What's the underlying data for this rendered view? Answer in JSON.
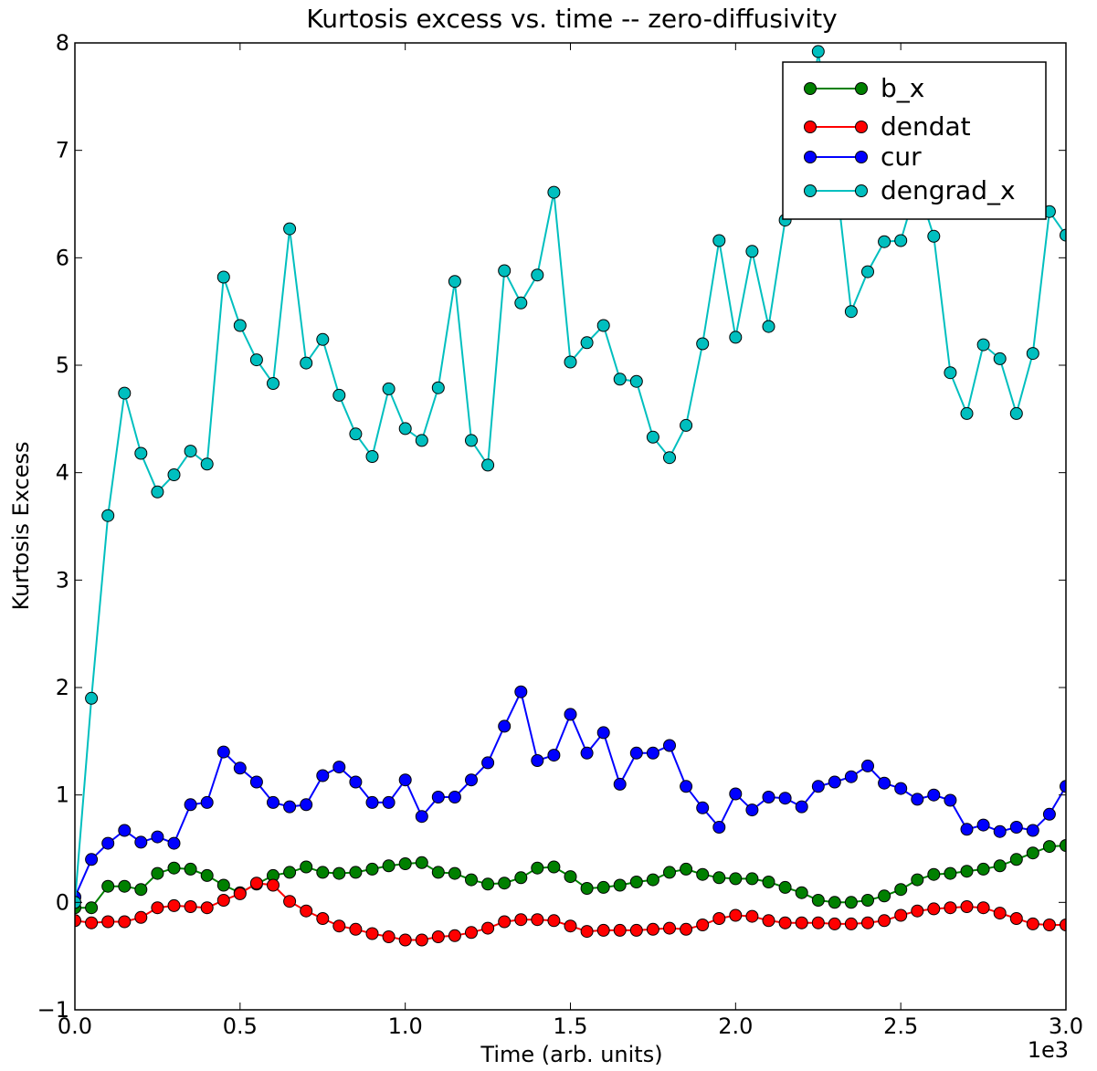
{
  "chart_data": {
    "type": "line",
    "title": "Kurtosis excess vs. time -- zero-diffusivity",
    "xlabel": "Time (arb. units)",
    "ylabel": "Kurtosis Excess",
    "x_offset_text": "1e3",
    "xlim": [
      0.0,
      3.0
    ],
    "ylim": [
      -1,
      8
    ],
    "x_ticks": [
      0.0,
      0.5,
      1.0,
      1.5,
      2.0,
      2.5,
      3.0
    ],
    "x_tick_labels": [
      "0.0",
      "0.5",
      "1.0",
      "1.5",
      "2.0",
      "2.5",
      "3.0"
    ],
    "y_ticks": [
      -1,
      0,
      1,
      2,
      3,
      4,
      5,
      6,
      7,
      8
    ],
    "y_tick_labels": [
      "−1",
      "0",
      "1",
      "2",
      "3",
      "4",
      "5",
      "6",
      "7",
      "8"
    ],
    "grid": false,
    "legend_position": "top-right",
    "x": [
      0.0,
      0.05,
      0.1,
      0.15,
      0.2,
      0.25,
      0.3,
      0.35,
      0.4,
      0.45,
      0.5,
      0.55,
      0.6,
      0.65,
      0.7,
      0.75,
      0.8,
      0.85,
      0.9,
      0.95,
      1.0,
      1.05,
      1.1,
      1.15,
      1.2,
      1.25,
      1.3,
      1.35,
      1.4,
      1.45,
      1.5,
      1.55,
      1.6,
      1.65,
      1.7,
      1.75,
      1.8,
      1.85,
      1.9,
      1.95,
      2.0,
      2.05,
      2.1,
      2.15,
      2.2,
      2.25,
      2.3,
      2.35,
      2.4,
      2.45,
      2.5,
      2.55,
      2.6,
      2.65,
      2.7,
      2.75,
      2.8,
      2.85,
      2.9,
      2.95,
      3.0
    ],
    "series": [
      {
        "name": "b_x",
        "color": "#008000",
        "values": [
          -0.05,
          -0.05,
          0.15,
          0.15,
          0.12,
          0.27,
          0.32,
          0.31,
          0.25,
          0.16,
          0.09,
          0.17,
          0.25,
          0.28,
          0.33,
          0.28,
          0.27,
          0.28,
          0.31,
          0.34,
          0.36,
          0.37,
          0.28,
          0.27,
          0.21,
          0.17,
          0.18,
          0.23,
          0.32,
          0.33,
          0.24,
          0.13,
          0.14,
          0.16,
          0.19,
          0.21,
          0.28,
          0.31,
          0.26,
          0.23,
          0.22,
          0.22,
          0.19,
          0.14,
          0.09,
          0.02,
          0.0,
          0.0,
          0.02,
          0.06,
          0.12,
          0.21,
          0.26,
          0.27,
          0.29,
          0.31,
          0.34,
          0.4,
          0.46,
          0.52,
          0.53
        ]
      },
      {
        "name": "dendat",
        "color": "#ff0000",
        "values": [
          -0.17,
          -0.19,
          -0.18,
          -0.18,
          -0.14,
          -0.05,
          -0.03,
          -0.04,
          -0.05,
          0.02,
          0.08,
          0.18,
          0.16,
          0.01,
          -0.08,
          -0.15,
          -0.22,
          -0.25,
          -0.29,
          -0.32,
          -0.35,
          -0.35,
          -0.32,
          -0.31,
          -0.28,
          -0.24,
          -0.18,
          -0.16,
          -0.16,
          -0.17,
          -0.22,
          -0.27,
          -0.26,
          -0.26,
          -0.26,
          -0.25,
          -0.24,
          -0.25,
          -0.21,
          -0.15,
          -0.12,
          -0.13,
          -0.17,
          -0.19,
          -0.19,
          -0.19,
          -0.2,
          -0.2,
          -0.19,
          -0.17,
          -0.12,
          -0.08,
          -0.06,
          -0.05,
          -0.04,
          -0.05,
          -0.1,
          -0.15,
          -0.2,
          -0.21,
          -0.21
        ]
      },
      {
        "name": "cur",
        "color": "#0000ff",
        "values": [
          0.05,
          0.4,
          0.55,
          0.67,
          0.56,
          0.61,
          0.55,
          0.91,
          0.93,
          1.4,
          1.25,
          1.12,
          0.93,
          0.89,
          0.91,
          1.18,
          1.26,
          1.12,
          0.93,
          0.93,
          1.14,
          0.8,
          0.98,
          0.98,
          1.14,
          1.3,
          1.64,
          1.96,
          1.32,
          1.37,
          1.75,
          1.39,
          1.58,
          1.1,
          1.39,
          1.39,
          1.46,
          1.08,
          0.88,
          0.7,
          1.01,
          0.86,
          0.98,
          0.97,
          0.89,
          1.08,
          1.12,
          1.17,
          1.27,
          1.11,
          1.06,
          0.96,
          1.0,
          0.95,
          0.68,
          0.72,
          0.66,
          0.7,
          0.67,
          0.82,
          1.08
        ]
      },
      {
        "name": "dengrad_x",
        "color": "#00bfbf",
        "values": [
          0.0,
          1.9,
          3.6,
          4.74,
          4.18,
          3.82,
          3.98,
          4.2,
          4.08,
          5.82,
          5.37,
          5.05,
          4.83,
          6.27,
          5.02,
          5.24,
          4.72,
          4.36,
          4.15,
          4.78,
          4.41,
          4.3,
          4.79,
          5.78,
          4.3,
          4.07,
          5.88,
          5.58,
          5.84,
          6.61,
          5.03,
          5.21,
          5.37,
          4.87,
          4.85,
          4.33,
          4.14,
          4.44,
          5.2,
          6.16,
          5.26,
          6.06,
          5.36,
          6.35,
          6.65,
          7.92,
          6.85,
          5.5,
          5.87,
          6.15,
          6.16,
          6.68,
          6.2,
          4.93,
          4.55,
          5.19,
          5.06,
          4.55,
          5.11,
          6.43,
          6.21
        ]
      }
    ]
  }
}
